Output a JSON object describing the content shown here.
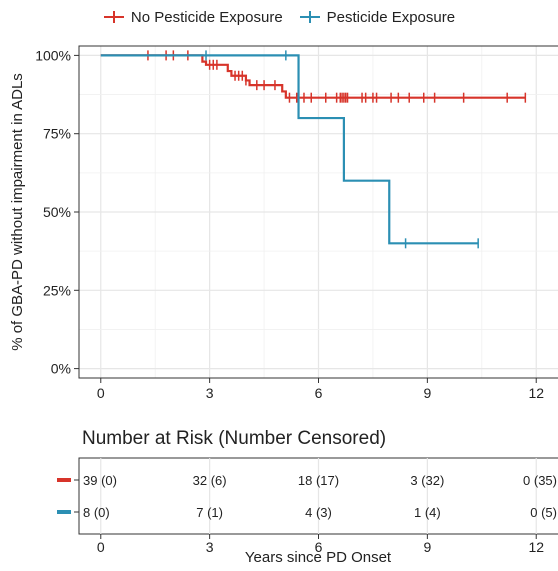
{
  "chart_data": {
    "type": "line",
    "subtype": "kaplan-meier",
    "title": "",
    "xlabel": "Years since PD Onset",
    "ylabel": "% of GBA-PD without impairment in ADLs",
    "xlim": [
      -0.6,
      12.6
    ],
    "ylim": [
      -3,
      103
    ],
    "xticks": [
      0,
      3,
      6,
      9,
      12
    ],
    "yticks": [
      0,
      25,
      50,
      75,
      100
    ],
    "ytick_labels": [
      "0%",
      "25%",
      "50%",
      "75%",
      "100%"
    ],
    "grid": true,
    "legend_position": "top",
    "series": [
      {
        "name": "No Pesticide Exposure",
        "color": "#d7342a",
        "steps": [
          [
            0,
            100
          ],
          [
            2.8,
            98
          ],
          [
            2.9,
            97
          ],
          [
            3.5,
            95
          ],
          [
            3.6,
            93.5
          ],
          [
            4.0,
            92
          ],
          [
            4.1,
            90.5
          ],
          [
            5.0,
            88.5
          ],
          [
            5.1,
            86.5
          ],
          [
            11.7,
            86.5
          ]
        ],
        "censor_times": [
          1.3,
          1.8,
          2.0,
          2.4,
          3.0,
          3.1,
          3.2,
          3.7,
          3.8,
          3.9,
          4.0,
          4.3,
          4.5,
          4.8,
          5.2,
          5.4,
          5.6,
          5.8,
          6.2,
          6.5,
          6.6,
          6.65,
          6.7,
          6.75,
          6.8,
          7.2,
          7.3,
          7.5,
          7.6,
          8.0,
          8.2,
          8.5,
          8.9,
          9.2,
          10.0,
          11.2,
          11.7
        ]
      },
      {
        "name": "Pesticide Exposure",
        "color": "#2b8fb3",
        "steps": [
          [
            0,
            100
          ],
          [
            5.45,
            80
          ],
          [
            6.7,
            60
          ],
          [
            7.95,
            40
          ],
          [
            10.4,
            40
          ]
        ],
        "censor_times": [
          2.9,
          5.1,
          8.4,
          10.4
        ]
      }
    ],
    "risk_table": {
      "title": "Number at Risk (Number Censored)",
      "xlabel": "Years since PD Onset",
      "times": [
        0,
        3,
        6,
        9,
        12
      ],
      "rows": [
        {
          "series": "No Pesticide Exposure",
          "color": "#d7342a",
          "cells": [
            "39 (0)",
            "32 (6)",
            "18 (17)",
            "3 (32)",
            "0 (35)"
          ]
        },
        {
          "series": "Pesticide Exposure",
          "color": "#2b8fb3",
          "cells": [
            "8 (0)",
            "7 (1)",
            "4 (3)",
            "1 (4)",
            "0 (5)"
          ]
        }
      ]
    }
  }
}
